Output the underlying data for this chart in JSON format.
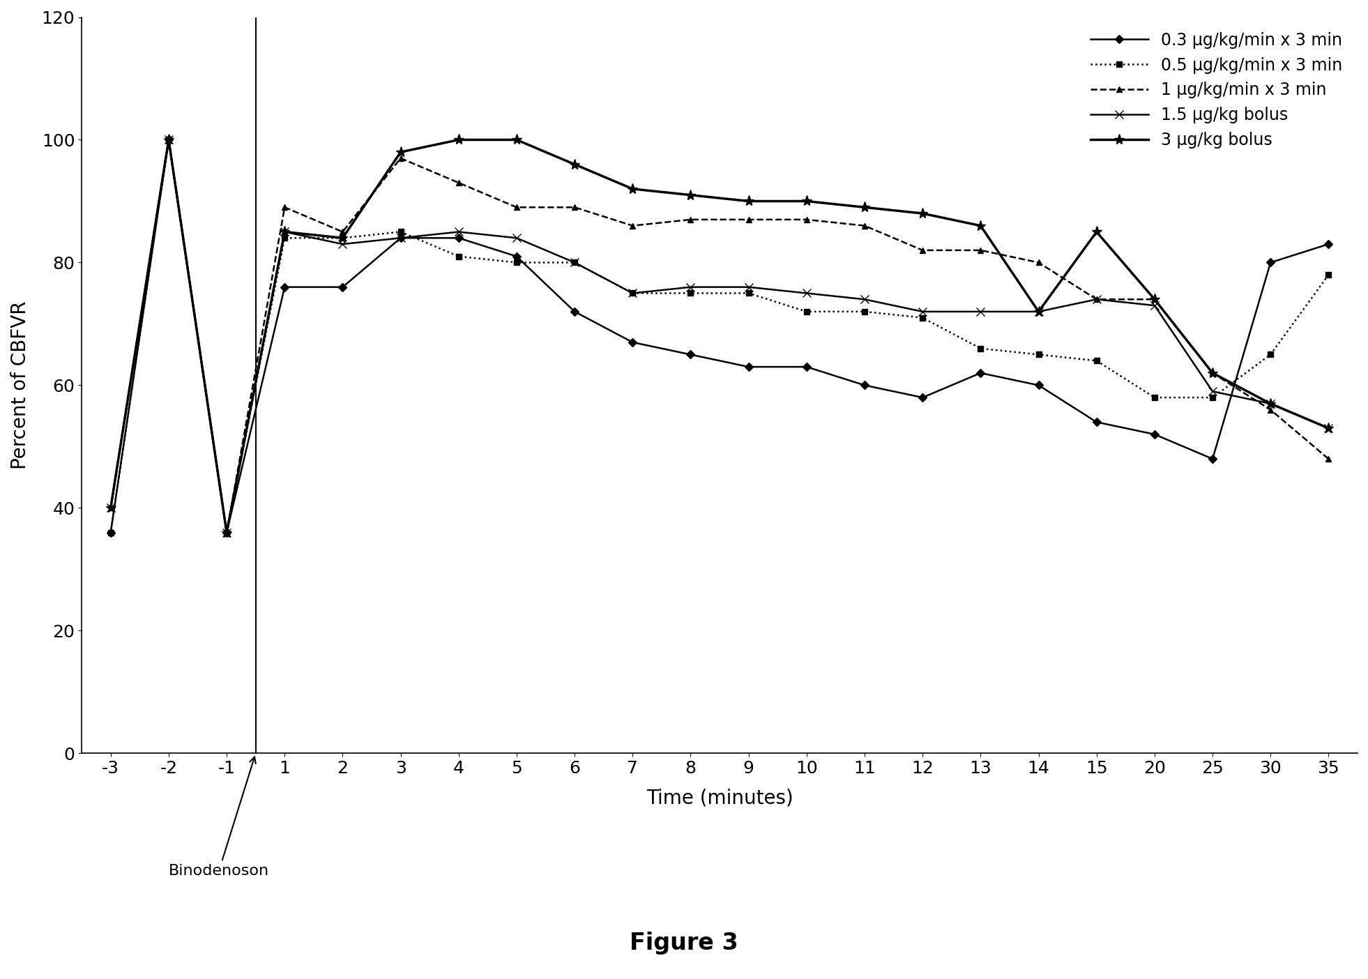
{
  "title": "Figure 3",
  "xlabel": "Time (minutes)",
  "ylabel": "Percent of CBFVR",
  "annotation": "Binodenoson",
  "ylim": [
    0,
    120
  ],
  "yticks": [
    0,
    20,
    40,
    60,
    80,
    100,
    120
  ],
  "x_labels": [
    "-3",
    "-2",
    "-1",
    "1",
    "2",
    "3",
    "4",
    "5",
    "6",
    "7",
    "8",
    "9",
    "10",
    "11",
    "12",
    "13",
    "14",
    "15",
    "20",
    "25",
    "30",
    "35"
  ],
  "series": [
    {
      "label": "0.3 μg/kg/min x 3 min",
      "linestyle": "solid",
      "marker": "D",
      "linewidth": 1.8,
      "markersize": 6,
      "data": [
        36,
        100,
        36,
        76,
        76,
        84,
        84,
        81,
        72,
        67,
        65,
        63,
        63,
        60,
        58,
        62,
        60,
        54,
        52,
        48,
        80,
        83
      ]
    },
    {
      "label": "0.5 μg/kg/min x 3 min",
      "linestyle": "dotted",
      "marker": "s",
      "linewidth": 1.8,
      "markersize": 6,
      "data": [
        36,
        100,
        36,
        84,
        84,
        85,
        81,
        80,
        80,
        75,
        75,
        75,
        72,
        72,
        71,
        66,
        65,
        64,
        58,
        58,
        65,
        78
      ]
    },
    {
      "label": "1 μg/kg/min x 3 min",
      "linestyle": "dashed",
      "marker": "^",
      "linewidth": 1.8,
      "markersize": 6,
      "data": [
        40,
        100,
        36,
        89,
        85,
        97,
        93,
        89,
        89,
        86,
        87,
        87,
        87,
        86,
        82,
        82,
        80,
        74,
        74,
        62,
        56,
        48
      ]
    },
    {
      "label": "1.5 μg/kg bolus",
      "linestyle": "solid",
      "marker": "x",
      "linewidth": 1.8,
      "markersize": 9,
      "data": [
        40,
        100,
        36,
        85,
        83,
        84,
        85,
        84,
        80,
        75,
        76,
        76,
        75,
        74,
        72,
        72,
        72,
        74,
        73,
        59,
        57,
        53
      ]
    },
    {
      "label": "3 μg/kg bolus",
      "linestyle": "solid",
      "marker": "*",
      "linewidth": 2.5,
      "markersize": 11,
      "data": [
        40,
        100,
        36,
        85,
        84,
        98,
        100,
        100,
        96,
        92,
        91,
        90,
        90,
        89,
        88,
        86,
        72,
        85,
        74,
        62,
        57,
        53
      ]
    }
  ],
  "background_color": "#ffffff",
  "title_fontsize": 24,
  "label_fontsize": 20,
  "tick_fontsize": 18,
  "legend_fontsize": 17
}
